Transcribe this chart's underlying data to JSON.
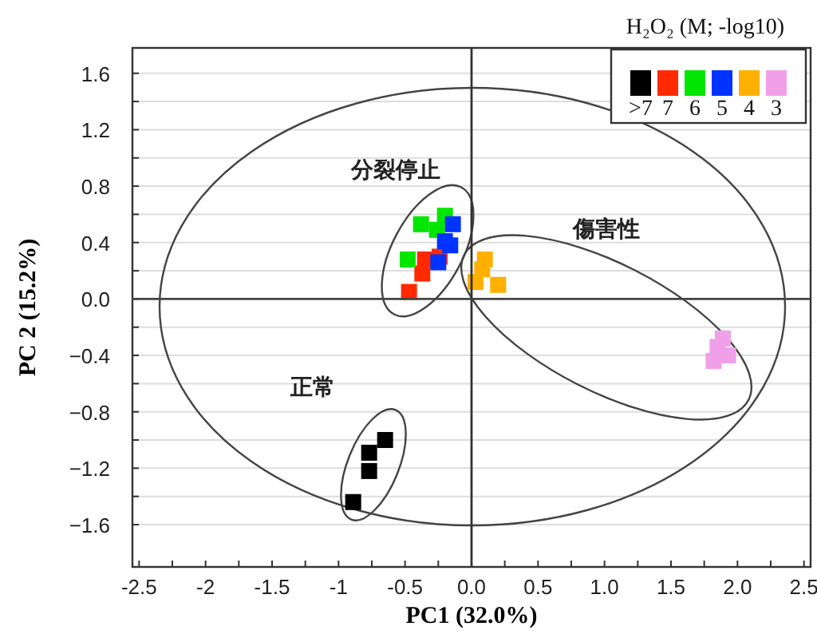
{
  "chart_data": {
    "type": "scatter",
    "xlabel": "PC1 (32.0%)",
    "ylabel": "PC 2 (15.2%)",
    "legend_title": "H₂O₂ (M; -log10)",
    "legend": "top right",
    "marker": "square",
    "grid": "y",
    "xlim": [
      -2.55,
      2.55
    ],
    "ylim": [
      -1.9,
      1.78
    ],
    "xticks": [
      -2.5,
      {
        "value": -2.25,
        "label": null
      },
      -2.0,
      {
        "value": -1.75,
        "label": null
      },
      -1.5,
      {
        "value": -1.25,
        "label": null
      },
      -1.0,
      {
        "value": -0.75,
        "label": null
      },
      -0.5,
      {
        "value": -0.25,
        "label": null
      },
      {
        "value": 0,
        "label": "0.0"
      },
      {
        "value": 0.25,
        "label": null
      },
      0.5,
      {
        "value": 0.75,
        "label": null
      },
      {
        "value": 1,
        "label": "1.0"
      },
      {
        "value": 1.25,
        "label": null
      },
      1.5,
      {
        "value": 1.75,
        "label": null
      },
      {
        "value": 2,
        "label": "2.0"
      },
      {
        "value": 2.25,
        "label": null
      },
      2.5
    ],
    "yticks": [
      {
        "value": -1.6,
        "label": "−1.6"
      },
      {
        "value": -1.4,
        "label": null
      },
      {
        "value": -1.2,
        "label": "−1.2"
      },
      {
        "value": -1.0,
        "label": null
      },
      {
        "value": -0.8,
        "label": "−0.8"
      },
      {
        "value": -0.6,
        "label": null
      },
      {
        "value": -0.4,
        "label": "−0.4"
      },
      {
        "value": -0.2,
        "label": null
      },
      {
        "value": 0,
        "label": "0.0"
      },
      {
        "value": 0.2,
        "label": null
      },
      0.4,
      {
        "value": 0.6,
        "label": null
      },
      0.8,
      {
        "value": 1.0,
        "label": null
      },
      1.2,
      {
        "value": 1.4,
        "label": null
      },
      1.6
    ],
    "ref_lines": [
      {
        "axis": "x",
        "value": 0,
        "label": null,
        "color": "#333333"
      },
      {
        "axis": "y",
        "value": 0,
        "label": null,
        "color": "#444444"
      }
    ],
    "annotations": [
      "分裂停止",
      "傷害性",
      "正常"
    ],
    "series": [
      {
        "name": ">7",
        "color": "#000000",
        "x": [
          -0.65,
          -0.77,
          -0.77,
          -0.89
        ],
        "values": [
          -1.0,
          -1.09,
          -1.22,
          -1.44
        ]
      },
      {
        "name": "7",
        "color": "#ff2a00",
        "x": [
          -0.35,
          -0.24,
          -0.37,
          -0.47
        ],
        "values": [
          0.28,
          0.3,
          0.18,
          0.05
        ]
      },
      {
        "name": "6",
        "color": "#00e600",
        "x": [
          -0.38,
          -0.2,
          -0.26,
          -0.48
        ],
        "values": [
          0.53,
          0.59,
          0.49,
          0.28
        ]
      },
      {
        "name": "5",
        "color": "#0033ff",
        "x": [
          -0.14,
          -0.2,
          -0.16,
          -0.25
        ],
        "values": [
          0.53,
          0.41,
          0.38,
          0.26
        ]
      },
      {
        "name": "4",
        "color": "#ffb000",
        "x": [
          0.1,
          0.08,
          0.03,
          0.2
        ],
        "values": [
          0.28,
          0.21,
          0.12,
          0.1
        ]
      },
      {
        "name": "3",
        "color": "#f0a0e8",
        "x": [
          1.89,
          1.85,
          1.93,
          1.82
        ],
        "values": [
          -0.28,
          -0.34,
          -0.4,
          -0.44
        ]
      }
    ]
  }
}
